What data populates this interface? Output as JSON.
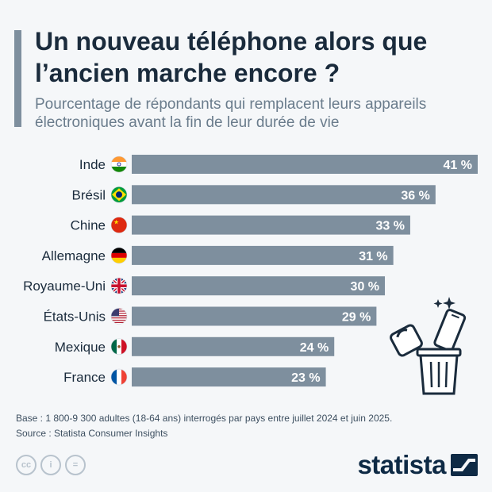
{
  "title": "Un nouveau téléphone alors que l’ancien marche encore ?",
  "subtitle": "Pourcentage de répondants qui remplacent leurs appareils électroniques avant la fin de leur durée de vie",
  "chart_data": {
    "type": "bar",
    "orientation": "horizontal",
    "categories": [
      "Inde",
      "Brésil",
      "Chine",
      "Allemagne",
      "Royaume-Uni",
      "États-Unis",
      "Mexique",
      "France"
    ],
    "values": [
      41,
      36,
      33,
      31,
      30,
      29,
      24,
      23
    ],
    "value_labels": [
      "41 %",
      "36 %",
      "33 %",
      "31 %",
      "30 %",
      "29 %",
      "24 %",
      "23 %"
    ],
    "flag_icons": [
      "flag-india-icon",
      "flag-brazil-icon",
      "flag-china-icon",
      "flag-germany-icon",
      "flag-uk-icon",
      "flag-usa-icon",
      "flag-mexico-icon",
      "flag-france-icon"
    ],
    "bar_color": "#7e8f9e",
    "value_label_color": "#ffffff",
    "xlim": [
      0,
      41
    ],
    "grid": false,
    "legend": "none"
  },
  "footnote": {
    "base": "Base : 1 800-9 300 adultes (18-64 ans) interrogés par pays entre juillet 2024 et juin 2025.",
    "source": "Source : Statista Consumer Insights"
  },
  "license_icons": [
    "creative-commons-icon",
    "attribution-icon",
    "no-derivatives-icon"
  ],
  "license_glyphs": [
    "cc",
    "i",
    "="
  ],
  "brand": {
    "name": "statista",
    "logo_color": "#0e2a45"
  }
}
